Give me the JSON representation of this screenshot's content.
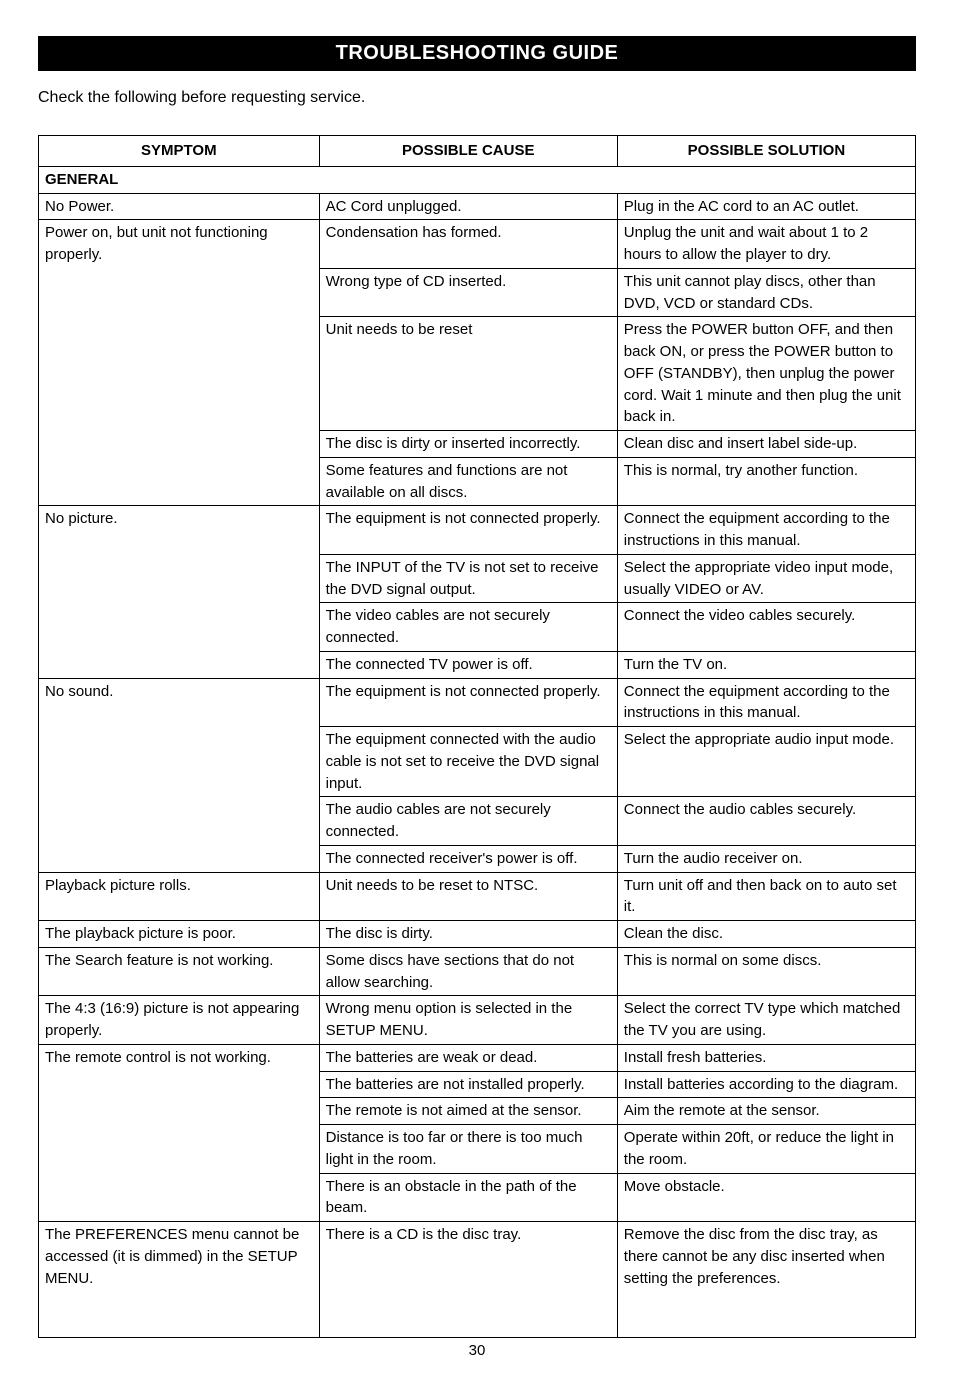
{
  "title": "TROUBLESHOOTING GUIDE",
  "intro": "Check the following before requesting service.",
  "headers": {
    "c1": "SYMPTOM",
    "c2": "POSSIBLE CAUSE",
    "c3": "POSSIBLE SOLUTION"
  },
  "section": "GENERAL",
  "page_number": "30",
  "rows": [
    {
      "symptom": "No Power.",
      "cause": "AC Cord unplugged.",
      "sol": "Plug in the AC cord to an AC outlet.",
      "span": 1
    },
    {
      "symptom": "Power on, but unit not functioning properly.",
      "cause": "Condensation has formed.",
      "sol": "Unplug the unit and wait about 1 to 2 hours to allow the player to dry.",
      "span": 5
    },
    {
      "cause": "Wrong type of CD inserted.",
      "sol": "This unit cannot play discs, other than DVD, VCD or standard CDs."
    },
    {
      "cause": "Unit needs to be reset",
      "sol": "Press the POWER button OFF, and then back ON, or press the POWER button to OFF (STANDBY), then unplug the power cord. Wait 1 minute and then plug the unit back in."
    },
    {
      "cause": "The disc is dirty or inserted incorrectly.",
      "sol": "Clean disc and insert label side-up."
    },
    {
      "cause": "Some features and functions are not available on all discs.",
      "sol": "This is normal, try another function."
    },
    {
      "symptom": "No picture.",
      "cause": "The equipment is not connected properly.",
      "sol": "Connect the equipment according to the instructions in this manual.",
      "span": 4
    },
    {
      "cause": "The INPUT of the TV is not set to receive the DVD signal output.",
      "sol": "Select the appropriate video input mode, usually VIDEO or AV."
    },
    {
      "cause": "The video cables are not securely connected.",
      "sol": "Connect the video cables securely."
    },
    {
      "cause": "The connected TV power is off.",
      "sol": "Turn the TV on."
    },
    {
      "symptom": "No sound.",
      "cause": "The equipment is not connected properly.",
      "sol": "Connect the equipment according to the instructions in this manual.",
      "span": 4
    },
    {
      "cause": "The equipment connected with the audio cable is not set to receive the DVD signal input.",
      "sol": "Select the appropriate audio input mode."
    },
    {
      "cause": "The audio cables are not securely connected.",
      "sol": "Connect the audio cables securely."
    },
    {
      "cause": "The connected receiver's power is off.",
      "sol": "Turn the audio receiver on."
    },
    {
      "symptom": "Playback picture rolls.",
      "cause": "Unit needs to be reset to NTSC.",
      "sol": "Turn unit off and then back on to auto set it.",
      "span": 1
    },
    {
      "symptom": "The playback picture is poor.",
      "cause": "The disc is dirty.",
      "sol": "Clean the disc.",
      "span": 1
    },
    {
      "symptom": "The Search feature is not working.",
      "cause": "Some discs have sections that do not allow searching.",
      "sol": "This is normal on some discs.",
      "span": 1
    },
    {
      "symptom": "The 4:3 (16:9) picture is not appearing properly.",
      "cause": "Wrong menu option is selected in the SETUP MENU.",
      "sol": "Select the correct TV type which matched the TV you are using.",
      "span": 1
    },
    {
      "symptom": "The remote control is not working.",
      "cause": "The batteries are weak or dead.",
      "sol": "Install fresh batteries.",
      "span": 5
    },
    {
      "cause": "The batteries are not installed properly.",
      "sol": "Install batteries according to the diagram."
    },
    {
      "cause": "The remote is not aimed at the sensor.",
      "sol": "Aim the remote at the sensor."
    },
    {
      "cause": "Distance is too far or there is too much light in the room.",
      "sol": "Operate within 20ft, or reduce the light in the room."
    },
    {
      "cause": "There is an obstacle in the path of the beam.",
      "sol": "Move obstacle."
    },
    {
      "symptom": "The PREFERENCES menu cannot be accessed (it is dimmed) in the SETUP MENU.",
      "cause": "There is a CD is the disc tray.",
      "sol": "Remove the disc from the disc tray, as there cannot be any disc inserted when setting the preferences.",
      "span": 1,
      "pad": true
    }
  ],
  "style": {
    "background_color": "#ffffff",
    "title_bg": "#000000",
    "title_color": "#ffffff",
    "title_fontsize": 20,
    "body_fontsize": 15,
    "font_family": "Arial, Helvetica, sans-serif",
    "border_color": "#000000",
    "col_widths": [
      "32%",
      "34%",
      "34%"
    ]
  }
}
